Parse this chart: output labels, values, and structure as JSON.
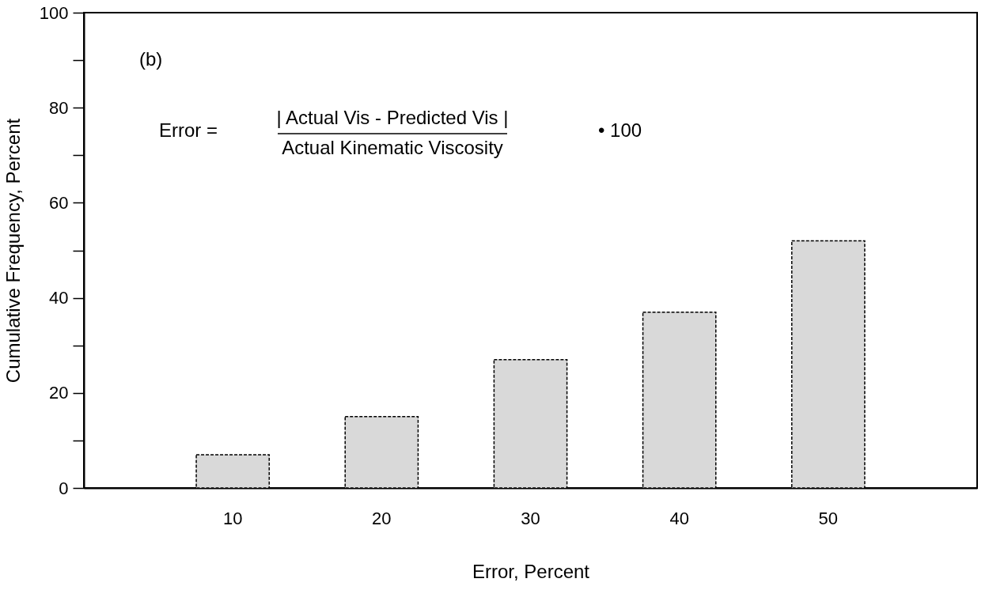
{
  "chart_data": {
    "type": "bar",
    "xlabel": "Error, Percent",
    "ylabel": "Cumulative Frequency, Percent",
    "categories": [
      "10",
      "20",
      "30",
      "40",
      "50"
    ],
    "values": [
      7,
      15,
      27,
      37,
      52
    ],
    "color": "#d9d9d9",
    "ylim": [
      0,
      100
    ],
    "yticks": [
      0,
      {
        "value": 10,
        "label": null
      },
      20,
      {
        "value": 30,
        "label": null
      },
      40,
      {
        "value": 50,
        "label": null
      },
      60,
      {
        "value": 70,
        "label": null
      },
      80,
      {
        "value": 90,
        "label": null
      },
      100
    ],
    "grid": false,
    "annotations": [
      "(b)",
      "Error =",
      "| Actual Vis - Predicted Vis |",
      "Actual Kinematic Viscosity",
      "• 100"
    ]
  }
}
